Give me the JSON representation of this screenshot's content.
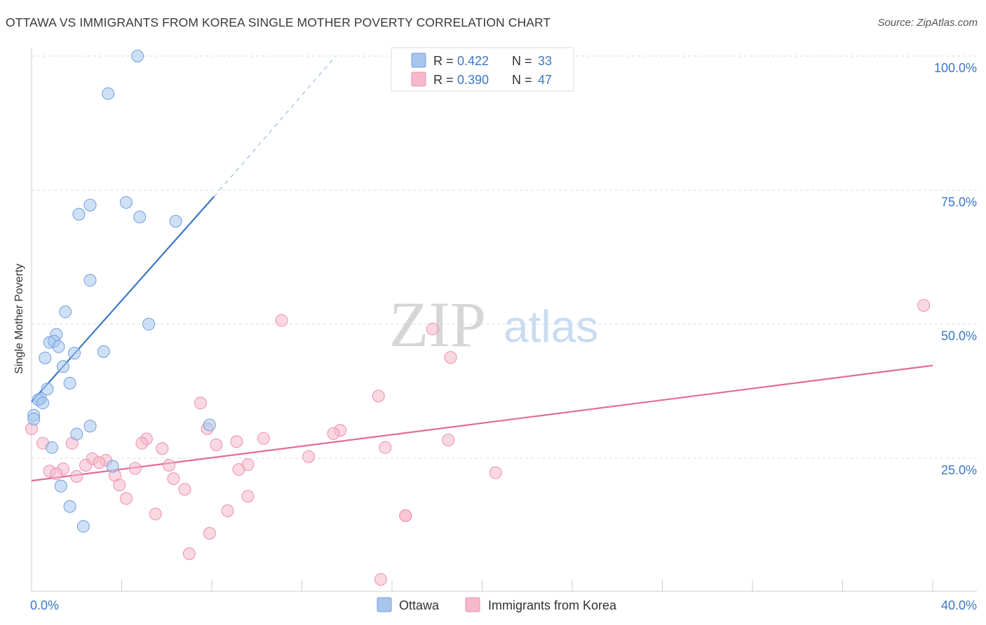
{
  "title": "OTTAWA VS IMMIGRANTS FROM KOREA SINGLE MOTHER POVERTY CORRELATION CHART",
  "source": "Source: ZipAtlas.com",
  "watermark": {
    "zip": "ZIP",
    "atlas": "atlas"
  },
  "legend_box": {
    "r_label": "R =",
    "n_label": "N =",
    "rows": [
      {
        "r": "0.422",
        "n": "33",
        "color": "#a7c6ee"
      },
      {
        "r": "0.390",
        "n": "47",
        "color": "#f6b8cb"
      }
    ]
  },
  "chart_data": {
    "type": "scatter",
    "title": "OTTAWA VS IMMIGRANTS FROM KOREA SINGLE MOTHER POVERTY CORRELATION CHART",
    "xlabel": "",
    "ylabel": "Single Mother Poverty",
    "xlim": [
      0,
      40
    ],
    "ylim": [
      0,
      105
    ],
    "x_tick_labels": {
      "left": "0.0%",
      "right": "40.0%"
    },
    "y_ticks": [
      {
        "value": 25,
        "label": "25.0%"
      },
      {
        "value": 50,
        "label": "50.0%"
      },
      {
        "value": 75,
        "label": "75.0%"
      },
      {
        "value": 100,
        "label": "100.0%"
      }
    ],
    "legend": [
      "Ottawa",
      "Immigrants from Korea"
    ],
    "series": [
      {
        "name": "Ottawa",
        "color": "#a7c6ee",
        "stroke": "#6f9fdc",
        "line_color": "#3a78c8",
        "trend": {
          "x0": 0.0,
          "y0": 35.5,
          "x1": 8.1,
          "y1": 73.8,
          "dash_to_x": 13.5,
          "dash_to_y": 100
        },
        "points": [
          [
            4.7,
            100.0
          ],
          [
            3.4,
            93.0
          ],
          [
            4.2,
            72.7
          ],
          [
            2.6,
            72.2
          ],
          [
            2.1,
            70.5
          ],
          [
            4.8,
            70.0
          ],
          [
            6.4,
            69.2
          ],
          [
            2.6,
            58.2
          ],
          [
            1.5,
            52.3
          ],
          [
            5.2,
            50.0
          ],
          [
            1.1,
            48.1
          ],
          [
            0.8,
            46.6
          ],
          [
            1.0,
            46.8
          ],
          [
            1.2,
            45.8
          ],
          [
            3.2,
            44.9
          ],
          [
            1.9,
            44.6
          ],
          [
            0.6,
            43.7
          ],
          [
            1.4,
            42.1
          ],
          [
            1.7,
            39.0
          ],
          [
            0.7,
            37.9
          ],
          [
            0.4,
            36.1
          ],
          [
            0.3,
            35.9
          ],
          [
            0.5,
            35.3
          ],
          [
            0.1,
            33.0
          ],
          [
            0.1,
            32.3
          ],
          [
            2.6,
            31.0
          ],
          [
            7.9,
            31.2
          ],
          [
            2.0,
            29.5
          ],
          [
            0.9,
            27.0
          ],
          [
            3.6,
            23.5
          ],
          [
            1.3,
            19.8
          ],
          [
            1.7,
            16.0
          ],
          [
            2.3,
            12.3
          ]
        ]
      },
      {
        "name": "Immigrants from Korea",
        "color": "#f6b8cb",
        "stroke": "#ec8fab",
        "line_color": "#e36c95",
        "trend": {
          "x0": 0.0,
          "y0": 20.8,
          "x1": 40.0,
          "y1": 42.3
        },
        "points": [
          [
            39.6,
            53.5
          ],
          [
            11.1,
            50.7
          ],
          [
            17.8,
            49.1
          ],
          [
            18.6,
            43.8
          ],
          [
            15.4,
            36.6
          ],
          [
            7.5,
            35.3
          ],
          [
            0.0,
            30.5
          ],
          [
            7.8,
            30.5
          ],
          [
            13.7,
            30.2
          ],
          [
            13.4,
            29.6
          ],
          [
            5.1,
            28.6
          ],
          [
            10.3,
            28.7
          ],
          [
            18.5,
            28.4
          ],
          [
            9.1,
            28.1
          ],
          [
            0.5,
            27.8
          ],
          [
            1.8,
            27.8
          ],
          [
            4.9,
            27.8
          ],
          [
            8.2,
            27.5
          ],
          [
            15.7,
            27.0
          ],
          [
            5.8,
            26.8
          ],
          [
            12.3,
            25.3
          ],
          [
            2.7,
            24.9
          ],
          [
            3.3,
            24.6
          ],
          [
            3.0,
            24.2
          ],
          [
            2.4,
            23.7
          ],
          [
            6.1,
            23.7
          ],
          [
            9.6,
            23.8
          ],
          [
            1.4,
            23.0
          ],
          [
            4.6,
            23.1
          ],
          [
            9.2,
            22.9
          ],
          [
            0.8,
            22.6
          ],
          [
            1.1,
            22.1
          ],
          [
            20.6,
            22.3
          ],
          [
            2.0,
            21.6
          ],
          [
            3.7,
            21.8
          ],
          [
            6.3,
            21.2
          ],
          [
            3.9,
            20.0
          ],
          [
            6.8,
            19.2
          ],
          [
            4.2,
            17.5
          ],
          [
            9.6,
            17.9
          ],
          [
            5.5,
            14.6
          ],
          [
            8.7,
            15.2
          ],
          [
            16.6,
            14.3
          ],
          [
            16.6,
            14.3
          ],
          [
            7.9,
            11.0
          ],
          [
            7.0,
            7.2
          ],
          [
            15.5,
            2.4
          ]
        ]
      }
    ]
  }
}
